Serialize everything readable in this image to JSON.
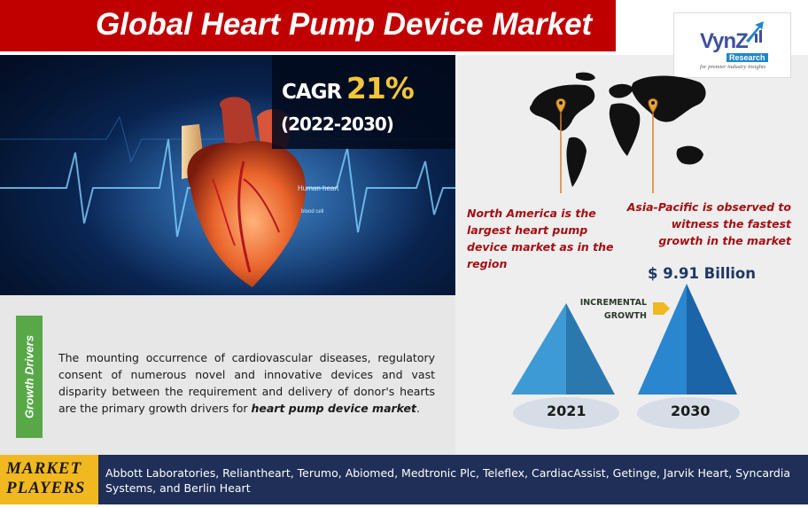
{
  "header": {
    "title": "Global Heart Pump Device Market"
  },
  "hero": {
    "cagr_label": "CAGR",
    "cagr_value": "21%",
    "period": "(2022-2030)",
    "image_labels": {
      "heart": "Human heart",
      "vessel": "blood cell"
    }
  },
  "logo": {
    "brand": "VynZ",
    "sub": "Research",
    "tagline": "for premier industry insights"
  },
  "regions": {
    "north_america": "North America is the largest heart pump device market as in the region",
    "asia_pacific": "Asia-Pacific is observed to witness the fastest growth in the market"
  },
  "growth": {
    "value_2030": "$ 9.91 Billion",
    "incremental_line1": "INCREMENTAL",
    "incremental_line2": "GROWTH",
    "year_start": "2021",
    "year_end": "2030"
  },
  "drivers": {
    "tab_label": "Growth Drivers",
    "text_before": "The mounting occurrence of cardiovascular diseases, regulatory consent of numerous novel and innovative devices and vast disparity between the requirement and delivery of donor's hearts are the primary growth drivers for ",
    "text_emphasis": "heart pump device market",
    "text_after": "."
  },
  "players": {
    "label_line1": "MARKET",
    "label_line2": "PLAYERS",
    "list": "Abbott Laboratories, Reliantheart, Terumo, Abiomed, Medtronic Plc, Teleflex, CardiacAssist, Getinge, Jarvik Heart, Syncardia Systems, and Berlin Heart"
  },
  "colors": {
    "title_red": "#c00000",
    "region_text": "#a50f12",
    "pyramid_blue": "#2e86c1",
    "drivers_green": "#58a848",
    "players_navy": "#1f2f58",
    "players_gold": "#f2b81f",
    "cagr_gold": "#f2c63a",
    "pin_orange": "#e07b2a"
  },
  "icons": {
    "map_pins": "location-pin-icon",
    "arrow": "arrow-right-icon"
  }
}
